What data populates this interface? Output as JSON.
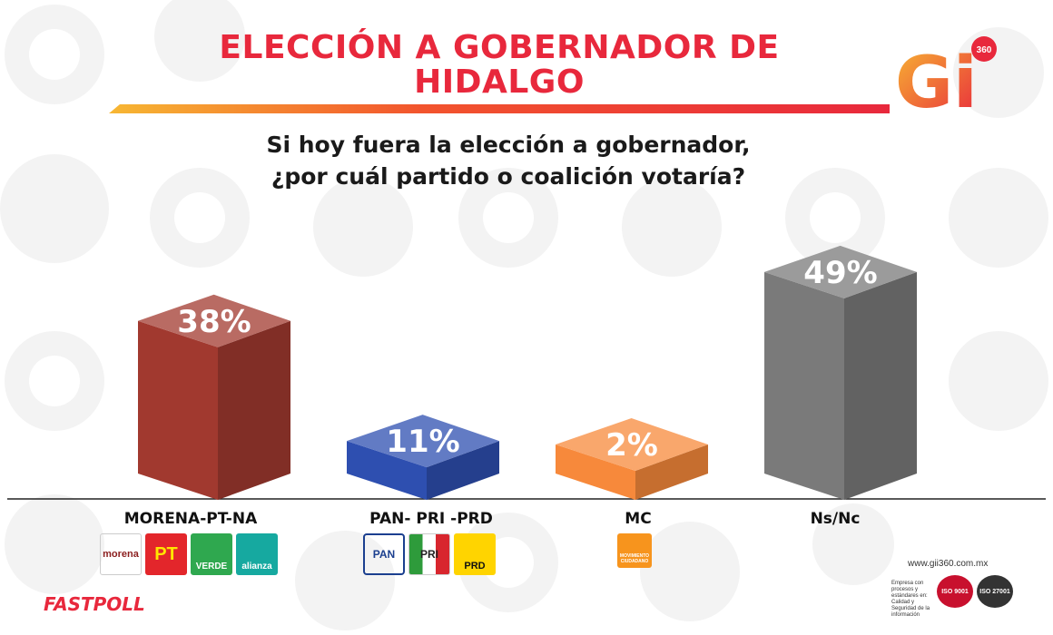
{
  "title": "ELECCIÓN A GOBERNADOR DE HIDALGO",
  "question_line1": "Si hoy fuera la elección a gobernador,",
  "question_line2": "¿por cuál partido o coalición votaría?",
  "brand": {
    "logo_text": "Gi",
    "logo_badge": "360",
    "website": "www.gii360.com.mx",
    "footer_left": "FASTPOLL",
    "iso_caption": "Empresa con procesos y estándares en: Calidad y Seguridad de la información",
    "iso1": "ISO 9001",
    "iso2": "ISO 27001"
  },
  "parties": {
    "morena_coalition": [
      "morena",
      "PT",
      "VERDE",
      "alianza"
    ],
    "pan_coalition": [
      "PAN",
      "PRI",
      "PRD"
    ],
    "mc": [
      "MOVIMIENTO CIUDADANO"
    ]
  },
  "colors": {
    "accent": "#e8283c",
    "orange": "#f7941d"
  },
  "chart_data": {
    "type": "bar",
    "categories": [
      "MORENA-PT-NA",
      "PAN- PRI -PRD",
      "MC",
      "Ns/Nc"
    ],
    "values": [
      38,
      11,
      2,
      49
    ],
    "value_labels": [
      "38%",
      "11%",
      "2%",
      "49%"
    ],
    "colors": [
      "#a1392f",
      "#2e4fb0",
      "#f7893b",
      "#7a7a7a"
    ],
    "ylim": [
      0,
      50
    ],
    "grid": false
  }
}
